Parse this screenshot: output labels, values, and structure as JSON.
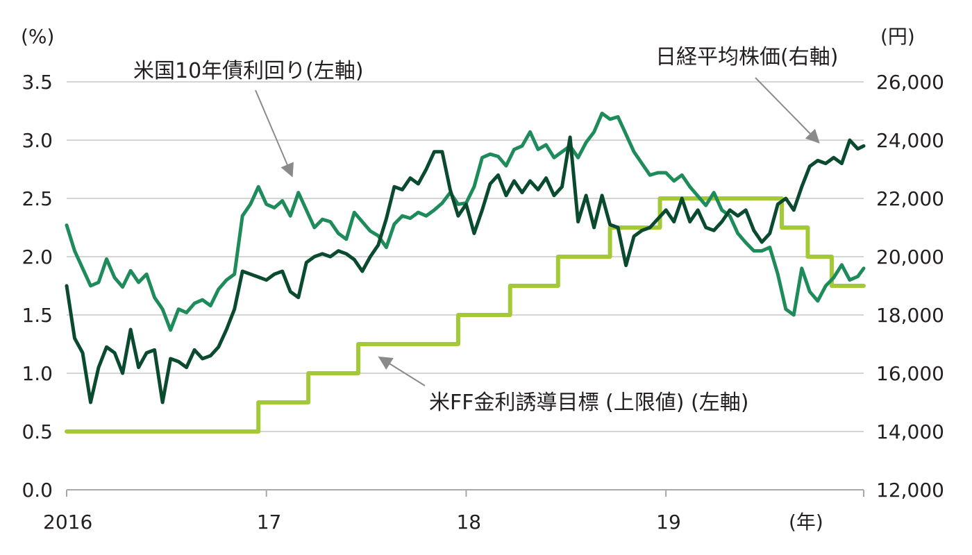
{
  "chart_data": {
    "type": "line",
    "left_axis": {
      "unit_label": "(%)",
      "ylim": [
        0,
        3.5
      ],
      "ticks": [
        "0.0",
        "0.5",
        "1.0",
        "1.5",
        "2.0",
        "2.5",
        "3.0",
        "3.5"
      ]
    },
    "right_axis": {
      "unit_label": "(円)",
      "ylim": [
        12000,
        26000
      ],
      "ticks": [
        "12,000",
        "14,000",
        "16,000",
        "18,000",
        "20,000",
        "22,000",
        "24,000",
        "26,000"
      ]
    },
    "x_axis": {
      "unit_label": "(年)",
      "xlim": [
        2016.0,
        2019.99
      ],
      "ticks": [
        {
          "x": 2016,
          "label": "2016"
        },
        {
          "x": 2017,
          "label": "17"
        },
        {
          "x": 2018,
          "label": "18"
        },
        {
          "x": 2019,
          "label": "19"
        }
      ]
    },
    "grid": true,
    "series": [
      {
        "name": "米国10年債利回り(左軸)",
        "axis": "left",
        "color": "#1e8c5a",
        "x": [
          2016.0,
          2016.04,
          2016.08,
          2016.12,
          2016.16,
          2016.2,
          2016.24,
          2016.28,
          2016.32,
          2016.36,
          2016.4,
          2016.44,
          2016.48,
          2016.52,
          2016.56,
          2016.6,
          2016.64,
          2016.68,
          2016.72,
          2016.76,
          2016.8,
          2016.84,
          2016.88,
          2016.92,
          2016.96,
          2017.0,
          2017.04,
          2017.08,
          2017.12,
          2017.16,
          2017.2,
          2017.24,
          2017.28,
          2017.32,
          2017.36,
          2017.4,
          2017.44,
          2017.48,
          2017.52,
          2017.56,
          2017.6,
          2017.64,
          2017.68,
          2017.72,
          2017.76,
          2017.8,
          2017.84,
          2017.88,
          2017.92,
          2017.96,
          2018.0,
          2018.04,
          2018.08,
          2018.12,
          2018.16,
          2018.2,
          2018.24,
          2018.28,
          2018.32,
          2018.36,
          2018.4,
          2018.44,
          2018.48,
          2018.52,
          2018.56,
          2018.6,
          2018.64,
          2018.68,
          2018.72,
          2018.76,
          2018.8,
          2018.84,
          2018.88,
          2018.92,
          2018.96,
          2019.0,
          2019.04,
          2019.08,
          2019.12,
          2019.16,
          2019.2,
          2019.24,
          2019.28,
          2019.32,
          2019.36,
          2019.4,
          2019.44,
          2019.48,
          2019.52,
          2019.56,
          2019.6,
          2019.64,
          2019.68,
          2019.72,
          2019.76,
          2019.8,
          2019.84,
          2019.88,
          2019.92,
          2019.96,
          2019.99
        ],
        "values": [
          2.27,
          2.05,
          1.9,
          1.75,
          1.78,
          1.98,
          1.82,
          1.74,
          1.88,
          1.78,
          1.85,
          1.65,
          1.55,
          1.37,
          1.55,
          1.52,
          1.6,
          1.63,
          1.58,
          1.72,
          1.8,
          1.85,
          2.35,
          2.45,
          2.6,
          2.45,
          2.42,
          2.48,
          2.35,
          2.55,
          2.4,
          2.25,
          2.32,
          2.3,
          2.2,
          2.15,
          2.38,
          2.3,
          2.22,
          2.18,
          2.08,
          2.28,
          2.35,
          2.33,
          2.38,
          2.35,
          2.4,
          2.46,
          2.55,
          2.45,
          2.46,
          2.6,
          2.85,
          2.88,
          2.86,
          2.78,
          2.92,
          2.95,
          3.07,
          2.92,
          2.96,
          2.85,
          2.9,
          2.95,
          2.85,
          2.98,
          3.07,
          3.23,
          3.18,
          3.2,
          3.05,
          2.9,
          2.8,
          2.7,
          2.72,
          2.72,
          2.65,
          2.7,
          2.6,
          2.52,
          2.44,
          2.55,
          2.4,
          2.35,
          2.2,
          2.12,
          2.05,
          2.05,
          2.08,
          1.85,
          1.55,
          1.5,
          1.9,
          1.7,
          1.62,
          1.75,
          1.82,
          1.93,
          1.8,
          1.83,
          1.9
        ]
      },
      {
        "name": "日経平均株価(右軸)",
        "axis": "right",
        "color": "#0a4a2e",
        "x": [
          2016.0,
          2016.04,
          2016.08,
          2016.12,
          2016.16,
          2016.2,
          2016.24,
          2016.28,
          2016.32,
          2016.36,
          2016.4,
          2016.44,
          2016.48,
          2016.52,
          2016.56,
          2016.6,
          2016.64,
          2016.68,
          2016.72,
          2016.76,
          2016.8,
          2016.84,
          2016.88,
          2016.92,
          2016.96,
          2017.0,
          2017.04,
          2017.08,
          2017.12,
          2017.16,
          2017.2,
          2017.24,
          2017.28,
          2017.32,
          2017.36,
          2017.4,
          2017.44,
          2017.48,
          2017.52,
          2017.56,
          2017.6,
          2017.64,
          2017.68,
          2017.72,
          2017.76,
          2017.8,
          2017.84,
          2017.88,
          2017.92,
          2017.96,
          2018.0,
          2018.04,
          2018.08,
          2018.12,
          2018.16,
          2018.2,
          2018.24,
          2018.28,
          2018.32,
          2018.36,
          2018.4,
          2018.44,
          2018.48,
          2018.52,
          2018.56,
          2018.6,
          2018.64,
          2018.68,
          2018.72,
          2018.76,
          2018.8,
          2018.84,
          2018.88,
          2018.92,
          2018.96,
          2019.0,
          2019.04,
          2019.08,
          2019.12,
          2019.16,
          2019.2,
          2019.24,
          2019.28,
          2019.32,
          2019.36,
          2019.4,
          2019.44,
          2019.48,
          2019.52,
          2019.56,
          2019.6,
          2019.64,
          2019.68,
          2019.72,
          2019.76,
          2019.8,
          2019.84,
          2019.88,
          2019.92,
          2019.96,
          2019.99
        ],
        "values": [
          19000,
          17200,
          16700,
          15000,
          16200,
          16900,
          16700,
          16000,
          17500,
          16200,
          16700,
          16800,
          15000,
          16500,
          16400,
          16200,
          16800,
          16500,
          16600,
          16900,
          17500,
          18200,
          19500,
          19400,
          19300,
          19200,
          19400,
          19500,
          18800,
          18600,
          19800,
          20000,
          20100,
          20000,
          20200,
          20100,
          19900,
          19500,
          20000,
          20400,
          21300,
          22400,
          22300,
          22700,
          22500,
          23000,
          23600,
          23600,
          22300,
          21400,
          21800,
          20800,
          21600,
          22500,
          22800,
          22100,
          22600,
          22200,
          22600,
          22300,
          22700,
          22100,
          22400,
          24100,
          21200,
          22100,
          21000,
          22100,
          21100,
          21000,
          19700,
          20700,
          20900,
          21000,
          21300,
          21600,
          21200,
          22000,
          21200,
          21600,
          21000,
          20900,
          21200,
          21600,
          21400,
          21600,
          20900,
          20500,
          20800,
          21800,
          22000,
          21600,
          22400,
          23100,
          23300,
          23200,
          23400,
          23200,
          24000,
          23700,
          23800
        ]
      },
      {
        "name": "米FF金利誘導目標 (上限値) (左軸)",
        "axis": "left",
        "color": "#a3c936",
        "step": true,
        "x": [
          2016.0,
          2016.96,
          2017.21,
          2017.46,
          2017.96,
          2018.22,
          2018.46,
          2018.72,
          2018.97,
          2019.58,
          2019.71,
          2019.83,
          2019.99
        ],
        "values": [
          0.5,
          0.75,
          1.0,
          1.25,
          1.5,
          1.75,
          2.0,
          2.25,
          2.5,
          2.25,
          2.0,
          1.75,
          1.75
        ]
      }
    ],
    "annotations": [
      {
        "text": "米国10年債利回り(左軸)",
        "target_series": 0
      },
      {
        "text": "日経平均株価(右軸)",
        "target_series": 1
      },
      {
        "text": "米FF金利誘導目標 (上限値) (左軸)",
        "target_series": 2
      }
    ]
  }
}
